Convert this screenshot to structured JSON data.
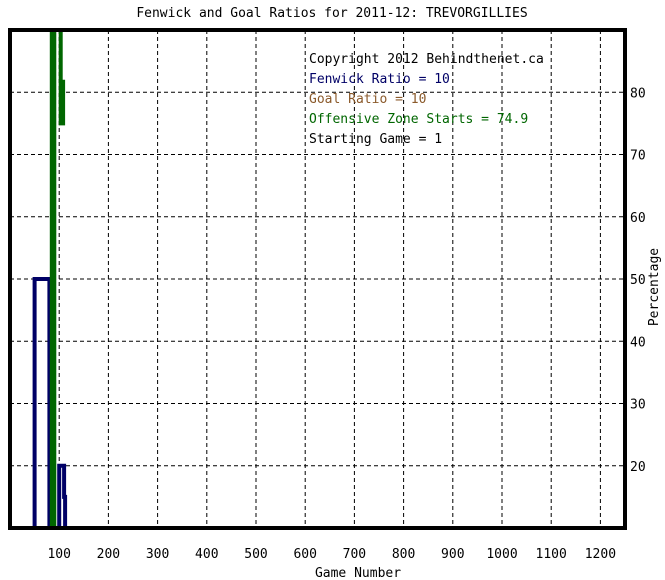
{
  "chart_data": {
    "type": "line",
    "title": "Fenwick and Goal Ratios for 2011-12: TREVORGILLIES",
    "xlabel": "Game Number",
    "ylabel": "Percentage",
    "xlim": [
      0,
      1250
    ],
    "ylim": [
      10,
      90
    ],
    "x_ticks": [
      100,
      200,
      300,
      400,
      500,
      600,
      700,
      800,
      900,
      1000,
      1100,
      1200
    ],
    "y_ticks": [
      20,
      30,
      40,
      50,
      60,
      70,
      80
    ],
    "grid": true,
    "legend_position": "top-right",
    "annotations": [
      {
        "text": "Copyright 2012 Behindthenet.ca",
        "color": "#000000"
      },
      {
        "text": "Fenwick Ratio = 10",
        "color": "#000066"
      },
      {
        "text": "Goal Ratio = 10",
        "color": "#8b5a2b"
      },
      {
        "text": "Offensive Zone Starts = 74.9",
        "color": "#006600"
      },
      {
        "text": "Starting Game = 1",
        "color": "#000000"
      }
    ],
    "series": [
      {
        "color": "#000066",
        "points": [
          [
            50,
            10
          ],
          [
            50,
            50
          ],
          [
            80,
            50
          ],
          [
            80,
            10
          ],
          [
            100,
            10
          ],
          [
            100,
            20
          ],
          [
            110,
            20
          ],
          [
            110,
            15
          ],
          [
            112,
            15
          ],
          [
            112,
            10
          ]
        ]
      },
      {
        "color": "#006600",
        "points": [
          [
            85,
            10
          ],
          [
            85,
            90
          ],
          [
            90,
            90
          ],
          [
            90,
            10
          ]
        ]
      },
      {
        "color": "#006600",
        "points": [
          [
            103,
            90
          ],
          [
            103,
            75
          ],
          [
            108,
            75
          ],
          [
            108,
            82
          ]
        ]
      }
    ]
  }
}
